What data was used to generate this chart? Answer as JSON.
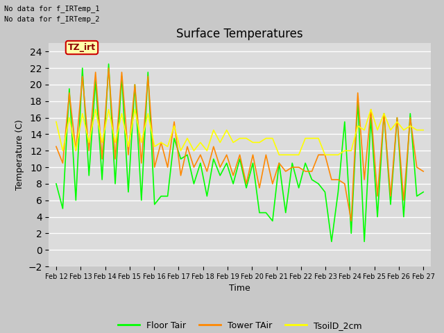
{
  "title": "Surface Temperatures",
  "xlabel": "Time",
  "ylabel": "Temperature (C)",
  "ylim": [
    -2,
    25
  ],
  "yticks": [
    -2,
    0,
    2,
    4,
    6,
    8,
    10,
    12,
    14,
    16,
    18,
    20,
    22,
    24
  ],
  "x_labels": [
    "Feb 12",
    "Feb 13",
    "Feb 14",
    "Feb 15",
    "Feb 16",
    "Feb 17",
    "Feb 18",
    "Feb 19",
    "Feb 20",
    "Feb 21",
    "Feb 22",
    "Feb 23",
    "Feb 24",
    "Feb 25",
    "Feb 26",
    "Feb 27"
  ],
  "no_data_lines": [
    "No data for f_IRTemp_1",
    "No data for f_IRTemp_2"
  ],
  "tz_label": "TZ_irt",
  "floor_color": "#00ff00",
  "tower_color": "#ff8800",
  "tsoil_color": "#ffff00",
  "legend_labels": [
    "Floor Tair",
    "Tower TAir",
    "TsoilD_2cm"
  ],
  "lw": 1.2,
  "fig_bg": "#c8c8c8",
  "ax_bg": "#dcdcdc",
  "floor_tair": [
    8.0,
    5.0,
    19.5,
    6.0,
    22.0,
    9.0,
    20.5,
    8.5,
    22.5,
    8.0,
    21.0,
    7.0,
    20.0,
    6.0,
    21.5,
    5.5,
    6.5,
    6.5,
    13.5,
    11.0,
    11.5,
    8.0,
    10.5,
    6.5,
    11.0,
    9.0,
    10.5,
    8.0,
    11.0,
    7.5,
    10.5,
    4.5,
    4.5,
    3.5,
    10.5,
    4.5,
    10.5,
    7.5,
    10.5,
    8.5,
    8.0,
    7.0,
    1.0,
    7.0,
    15.5,
    2.0,
    18.0,
    1.0,
    16.0,
    4.0,
    16.5,
    5.5,
    16.0,
    4.0,
    16.5,
    6.5,
    7.0
  ],
  "tower_tair": [
    12.5,
    10.5,
    19.0,
    12.0,
    21.0,
    12.0,
    21.5,
    11.0,
    22.0,
    11.0,
    21.5,
    11.5,
    20.0,
    10.5,
    21.0,
    10.0,
    13.0,
    10.0,
    15.5,
    9.0,
    12.5,
    10.0,
    11.5,
    9.5,
    12.5,
    10.0,
    11.5,
    9.0,
    11.5,
    8.0,
    11.5,
    7.5,
    11.5,
    8.0,
    10.5,
    9.5,
    10.0,
    10.0,
    9.5,
    9.5,
    11.5,
    11.5,
    8.5,
    8.5,
    8.0,
    3.5,
    19.0,
    8.5,
    17.0,
    6.5,
    16.5,
    6.5,
    16.0,
    6.0,
    16.0,
    10.0,
    9.5
  ],
  "tsoilD_2cm": [
    15.5,
    12.0,
    16.0,
    12.0,
    16.5,
    13.0,
    17.0,
    13.0,
    17.0,
    13.0,
    16.5,
    12.5,
    17.0,
    13.0,
    16.5,
    12.5,
    13.0,
    12.5,
    15.0,
    12.0,
    13.5,
    12.0,
    13.0,
    12.0,
    14.5,
    13.0,
    14.5,
    13.0,
    13.5,
    13.5,
    13.0,
    13.0,
    13.5,
    13.5,
    11.5,
    11.5,
    11.5,
    11.5,
    13.5,
    13.5,
    13.5,
    11.5,
    11.5,
    11.5,
    12.0,
    12.0,
    15.0,
    14.5,
    17.0,
    14.5,
    16.5,
    14.5,
    15.5,
    14.5,
    15.0,
    14.5,
    14.5
  ]
}
